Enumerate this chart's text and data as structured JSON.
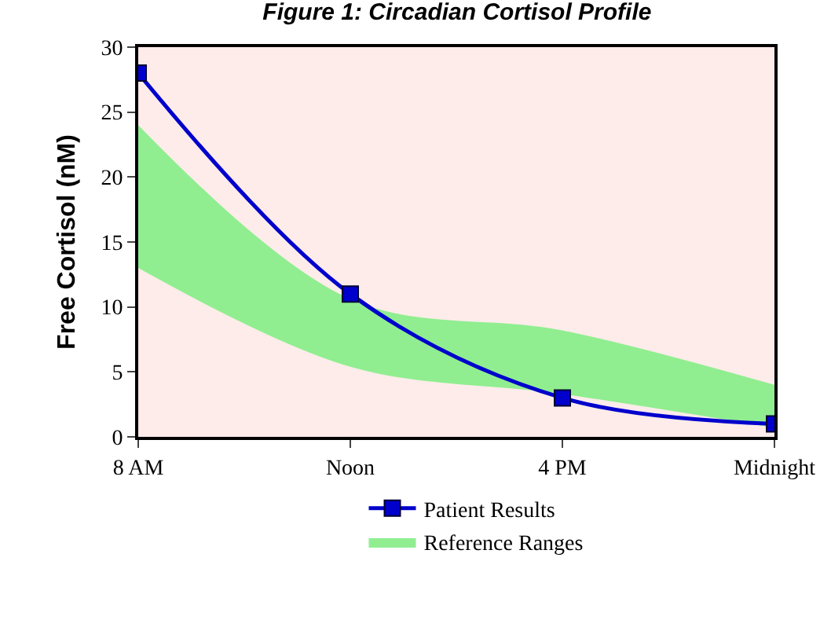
{
  "chart_data": {
    "type": "line",
    "title": "Figure 1: Circadian Cortisol Profile",
    "ylabel": "Free Cortisol (nM)",
    "categories": [
      "8 AM",
      "Noon",
      "4 PM",
      "Midnight"
    ],
    "series": [
      {
        "name": "Reference Ranges",
        "type": "area",
        "color": "#90ee90",
        "values": [
          null,
          null,
          null,
          null
        ],
        "lower": [
          13,
          5.4,
          3.3,
          0.7
        ],
        "upper": [
          24,
          10.6,
          8.2,
          4
        ]
      },
      {
        "name": "Patient Results",
        "color": "#0000cc",
        "values": [
          28,
          11,
          3,
          1
        ],
        "marker": "square"
      }
    ],
    "ylim": [
      0,
      30
    ],
    "yticks": [
      0,
      5,
      10,
      15,
      20,
      25,
      30
    ],
    "grid": false,
    "legend": "bottom",
    "line_style": "solid"
  }
}
